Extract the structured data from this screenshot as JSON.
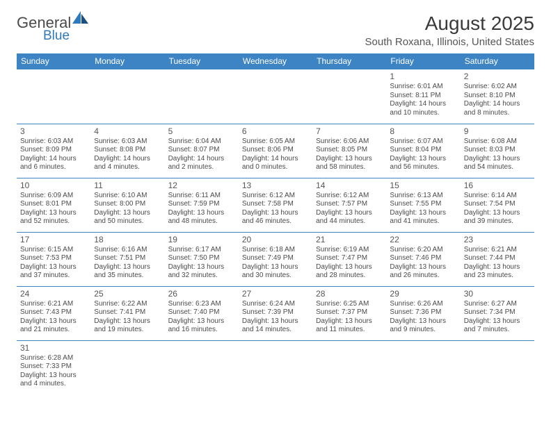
{
  "logo": {
    "general": "General",
    "blue": "Blue"
  },
  "title": "August 2025",
  "location": "South Roxana, Illinois, United States",
  "colors": {
    "header_bg": "#3d84c5",
    "header_fg": "#ffffff",
    "rule": "#3d84c5",
    "text": "#4a4a4a"
  },
  "day_headers": [
    "Sunday",
    "Monday",
    "Tuesday",
    "Wednesday",
    "Thursday",
    "Friday",
    "Saturday"
  ],
  "weeks": [
    [
      null,
      null,
      null,
      null,
      null,
      {
        "n": "1",
        "sr": "Sunrise: 6:01 AM",
        "ss": "Sunset: 8:11 PM",
        "dl1": "Daylight: 14 hours",
        "dl2": "and 10 minutes."
      },
      {
        "n": "2",
        "sr": "Sunrise: 6:02 AM",
        "ss": "Sunset: 8:10 PM",
        "dl1": "Daylight: 14 hours",
        "dl2": "and 8 minutes."
      }
    ],
    [
      {
        "n": "3",
        "sr": "Sunrise: 6:03 AM",
        "ss": "Sunset: 8:09 PM",
        "dl1": "Daylight: 14 hours",
        "dl2": "and 6 minutes."
      },
      {
        "n": "4",
        "sr": "Sunrise: 6:03 AM",
        "ss": "Sunset: 8:08 PM",
        "dl1": "Daylight: 14 hours",
        "dl2": "and 4 minutes."
      },
      {
        "n": "5",
        "sr": "Sunrise: 6:04 AM",
        "ss": "Sunset: 8:07 PM",
        "dl1": "Daylight: 14 hours",
        "dl2": "and 2 minutes."
      },
      {
        "n": "6",
        "sr": "Sunrise: 6:05 AM",
        "ss": "Sunset: 8:06 PM",
        "dl1": "Daylight: 14 hours",
        "dl2": "and 0 minutes."
      },
      {
        "n": "7",
        "sr": "Sunrise: 6:06 AM",
        "ss": "Sunset: 8:05 PM",
        "dl1": "Daylight: 13 hours",
        "dl2": "and 58 minutes."
      },
      {
        "n": "8",
        "sr": "Sunrise: 6:07 AM",
        "ss": "Sunset: 8:04 PM",
        "dl1": "Daylight: 13 hours",
        "dl2": "and 56 minutes."
      },
      {
        "n": "9",
        "sr": "Sunrise: 6:08 AM",
        "ss": "Sunset: 8:03 PM",
        "dl1": "Daylight: 13 hours",
        "dl2": "and 54 minutes."
      }
    ],
    [
      {
        "n": "10",
        "sr": "Sunrise: 6:09 AM",
        "ss": "Sunset: 8:01 PM",
        "dl1": "Daylight: 13 hours",
        "dl2": "and 52 minutes."
      },
      {
        "n": "11",
        "sr": "Sunrise: 6:10 AM",
        "ss": "Sunset: 8:00 PM",
        "dl1": "Daylight: 13 hours",
        "dl2": "and 50 minutes."
      },
      {
        "n": "12",
        "sr": "Sunrise: 6:11 AM",
        "ss": "Sunset: 7:59 PM",
        "dl1": "Daylight: 13 hours",
        "dl2": "and 48 minutes."
      },
      {
        "n": "13",
        "sr": "Sunrise: 6:12 AM",
        "ss": "Sunset: 7:58 PM",
        "dl1": "Daylight: 13 hours",
        "dl2": "and 46 minutes."
      },
      {
        "n": "14",
        "sr": "Sunrise: 6:12 AM",
        "ss": "Sunset: 7:57 PM",
        "dl1": "Daylight: 13 hours",
        "dl2": "and 44 minutes."
      },
      {
        "n": "15",
        "sr": "Sunrise: 6:13 AM",
        "ss": "Sunset: 7:55 PM",
        "dl1": "Daylight: 13 hours",
        "dl2": "and 41 minutes."
      },
      {
        "n": "16",
        "sr": "Sunrise: 6:14 AM",
        "ss": "Sunset: 7:54 PM",
        "dl1": "Daylight: 13 hours",
        "dl2": "and 39 minutes."
      }
    ],
    [
      {
        "n": "17",
        "sr": "Sunrise: 6:15 AM",
        "ss": "Sunset: 7:53 PM",
        "dl1": "Daylight: 13 hours",
        "dl2": "and 37 minutes."
      },
      {
        "n": "18",
        "sr": "Sunrise: 6:16 AM",
        "ss": "Sunset: 7:51 PM",
        "dl1": "Daylight: 13 hours",
        "dl2": "and 35 minutes."
      },
      {
        "n": "19",
        "sr": "Sunrise: 6:17 AM",
        "ss": "Sunset: 7:50 PM",
        "dl1": "Daylight: 13 hours",
        "dl2": "and 32 minutes."
      },
      {
        "n": "20",
        "sr": "Sunrise: 6:18 AM",
        "ss": "Sunset: 7:49 PM",
        "dl1": "Daylight: 13 hours",
        "dl2": "and 30 minutes."
      },
      {
        "n": "21",
        "sr": "Sunrise: 6:19 AM",
        "ss": "Sunset: 7:47 PM",
        "dl1": "Daylight: 13 hours",
        "dl2": "and 28 minutes."
      },
      {
        "n": "22",
        "sr": "Sunrise: 6:20 AM",
        "ss": "Sunset: 7:46 PM",
        "dl1": "Daylight: 13 hours",
        "dl2": "and 26 minutes."
      },
      {
        "n": "23",
        "sr": "Sunrise: 6:21 AM",
        "ss": "Sunset: 7:44 PM",
        "dl1": "Daylight: 13 hours",
        "dl2": "and 23 minutes."
      }
    ],
    [
      {
        "n": "24",
        "sr": "Sunrise: 6:21 AM",
        "ss": "Sunset: 7:43 PM",
        "dl1": "Daylight: 13 hours",
        "dl2": "and 21 minutes."
      },
      {
        "n": "25",
        "sr": "Sunrise: 6:22 AM",
        "ss": "Sunset: 7:41 PM",
        "dl1": "Daylight: 13 hours",
        "dl2": "and 19 minutes."
      },
      {
        "n": "26",
        "sr": "Sunrise: 6:23 AM",
        "ss": "Sunset: 7:40 PM",
        "dl1": "Daylight: 13 hours",
        "dl2": "and 16 minutes."
      },
      {
        "n": "27",
        "sr": "Sunrise: 6:24 AM",
        "ss": "Sunset: 7:39 PM",
        "dl1": "Daylight: 13 hours",
        "dl2": "and 14 minutes."
      },
      {
        "n": "28",
        "sr": "Sunrise: 6:25 AM",
        "ss": "Sunset: 7:37 PM",
        "dl1": "Daylight: 13 hours",
        "dl2": "and 11 minutes."
      },
      {
        "n": "29",
        "sr": "Sunrise: 6:26 AM",
        "ss": "Sunset: 7:36 PM",
        "dl1": "Daylight: 13 hours",
        "dl2": "and 9 minutes."
      },
      {
        "n": "30",
        "sr": "Sunrise: 6:27 AM",
        "ss": "Sunset: 7:34 PM",
        "dl1": "Daylight: 13 hours",
        "dl2": "and 7 minutes."
      }
    ],
    [
      {
        "n": "31",
        "sr": "Sunrise: 6:28 AM",
        "ss": "Sunset: 7:33 PM",
        "dl1": "Daylight: 13 hours",
        "dl2": "and 4 minutes."
      },
      null,
      null,
      null,
      null,
      null,
      null
    ]
  ]
}
